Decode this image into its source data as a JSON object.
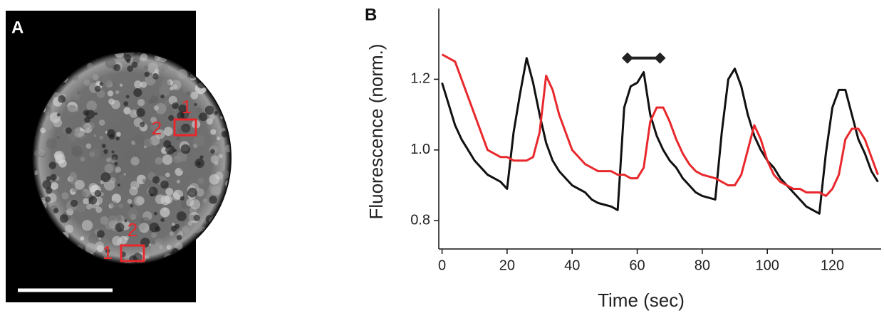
{
  "panel_a": {
    "label": "A",
    "roi_labels": [
      "1",
      "2",
      "2",
      "1"
    ]
  },
  "chart_data": {
    "type": "line",
    "panel_label": "B",
    "x_label": "Time (sec)",
    "y_label": "Fluorescence (norm.)",
    "x": [
      0,
      2,
      4,
      6,
      8,
      10,
      12,
      14,
      16,
      18,
      20,
      22,
      24,
      26,
      28,
      30,
      32,
      34,
      36,
      38,
      40,
      42,
      44,
      46,
      48,
      50,
      52,
      54,
      56,
      58,
      60,
      62,
      64,
      66,
      68,
      70,
      72,
      74,
      76,
      78,
      80,
      82,
      84,
      86,
      88,
      90,
      92,
      94,
      96,
      98,
      100,
      102,
      104,
      106,
      108,
      110,
      112,
      114,
      116,
      118,
      120,
      122,
      124,
      126,
      128,
      130,
      132,
      134
    ],
    "series": [
      {
        "color": "#111111",
        "values": [
          1.19,
          1.13,
          1.07,
          1.03,
          1.0,
          0.97,
          0.95,
          0.93,
          0.92,
          0.91,
          0.89,
          1.05,
          1.16,
          1.26,
          1.19,
          1.1,
          1.02,
          0.97,
          0.94,
          0.92,
          0.9,
          0.89,
          0.88,
          0.86,
          0.85,
          0.845,
          0.84,
          0.83,
          1.12,
          1.18,
          1.19,
          1.22,
          1.1,
          1.04,
          1.0,
          0.97,
          0.95,
          0.92,
          0.9,
          0.88,
          0.87,
          0.865,
          0.86,
          1.05,
          1.2,
          1.23,
          1.18,
          1.1,
          1.04,
          1.0,
          0.97,
          0.95,
          0.92,
          0.9,
          0.88,
          0.86,
          0.84,
          0.83,
          0.82,
          0.99,
          1.12,
          1.17,
          1.17,
          1.1,
          1.03,
          0.99,
          0.94,
          0.91
        ]
      },
      {
        "color": "#e8282c",
        "values": [
          1.27,
          1.26,
          1.25,
          1.2,
          1.15,
          1.1,
          1.05,
          1.0,
          0.99,
          0.98,
          0.98,
          0.97,
          0.97,
          0.97,
          0.98,
          1.05,
          1.21,
          1.17,
          1.1,
          1.05,
          1.0,
          0.98,
          0.96,
          0.95,
          0.94,
          0.94,
          0.94,
          0.93,
          0.93,
          0.92,
          0.92,
          0.95,
          1.08,
          1.12,
          1.12,
          1.08,
          1.03,
          0.99,
          0.96,
          0.94,
          0.93,
          0.925,
          0.92,
          0.91,
          0.9,
          0.9,
          0.93,
          1.0,
          1.07,
          1.03,
          0.97,
          0.93,
          0.91,
          0.9,
          0.89,
          0.89,
          0.88,
          0.88,
          0.88,
          0.87,
          0.89,
          0.93,
          1.03,
          1.06,
          1.06,
          1.03,
          0.98,
          0.93
        ]
      }
    ],
    "period_bar": {
      "x": [
        57,
        67
      ],
      "y": 1.26,
      "color": "#222222"
    },
    "xlim": [
      -1,
      135
    ],
    "xticks": [
      0,
      20,
      40,
      60,
      80,
      100,
      120
    ],
    "ylim": [
      0.72,
      1.4
    ],
    "yticks": [
      0.8,
      {
        "value": 1,
        "label": "1.0"
      },
      1.2
    ]
  }
}
